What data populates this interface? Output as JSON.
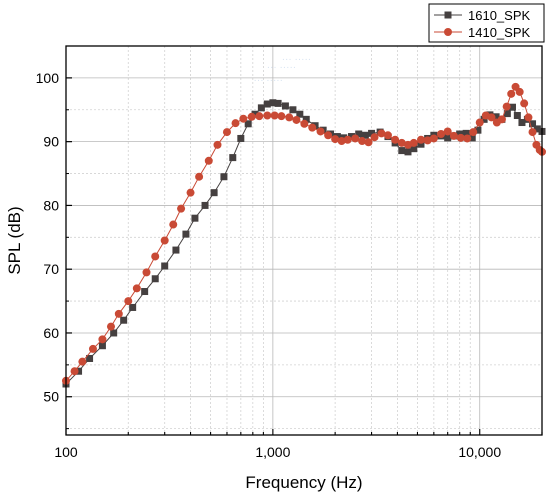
{
  "chart_data": {
    "type": "line",
    "title": "",
    "xlabel": "Frequency (Hz)",
    "ylabel": "SPL (dB)",
    "xscale": "log",
    "xlim": [
      100,
      20000
    ],
    "ylim": [
      44,
      105
    ],
    "grid": true,
    "legend_position": "top-right",
    "x_tick_labels": [
      {
        "value": 100,
        "label": "100"
      },
      {
        "value": 1000,
        "label": "1,000"
      },
      {
        "value": 10000,
        "label": "10,000"
      }
    ],
    "y_tick_labels": [
      {
        "value": 50,
        "label": "50"
      },
      {
        "value": 60,
        "label": "60"
      },
      {
        "value": 70,
        "label": "70"
      },
      {
        "value": 80,
        "label": "80"
      },
      {
        "value": 90,
        "label": "90"
      },
      {
        "value": 100,
        "label": "100"
      }
    ],
    "series": [
      {
        "name": "1610_SPK",
        "color": "#454040",
        "marker": "square",
        "points": [
          [
            100,
            52
          ],
          [
            115,
            54
          ],
          [
            130,
            56
          ],
          [
            150,
            58
          ],
          [
            170,
            60
          ],
          [
            190,
            62
          ],
          [
            210,
            64
          ],
          [
            240,
            66.5
          ],
          [
            270,
            68.5
          ],
          [
            300,
            70.5
          ],
          [
            340,
            73
          ],
          [
            380,
            75.5
          ],
          [
            420,
            78
          ],
          [
            470,
            80
          ],
          [
            520,
            82
          ],
          [
            580,
            84.5
          ],
          [
            640,
            87.5
          ],
          [
            700,
            90.5
          ],
          [
            760,
            92.8
          ],
          [
            820,
            94.3
          ],
          [
            880,
            95.3
          ],
          [
            940,
            95.9
          ],
          [
            1000,
            96.1
          ],
          [
            1060,
            96
          ],
          [
            1150,
            95.6
          ],
          [
            1250,
            95
          ],
          [
            1350,
            94.3
          ],
          [
            1450,
            93.5
          ],
          [
            1600,
            92.5
          ],
          [
            1750,
            91.8
          ],
          [
            1900,
            91.2
          ],
          [
            2050,
            90.8
          ],
          [
            2200,
            90.6
          ],
          [
            2400,
            90.8
          ],
          [
            2600,
            91.2
          ],
          [
            2800,
            91
          ],
          [
            3000,
            91.3
          ],
          [
            3300,
            91.5
          ],
          [
            3600,
            90.8
          ],
          [
            3900,
            89.8
          ],
          [
            4200,
            88.6
          ],
          [
            4500,
            88.4
          ],
          [
            4800,
            88.9
          ],
          [
            5200,
            89.6
          ],
          [
            5600,
            90.5
          ],
          [
            6000,
            91
          ],
          [
            6500,
            90.9
          ],
          [
            7000,
            90.6
          ],
          [
            7500,
            90.9
          ],
          [
            8000,
            91.2
          ],
          [
            8600,
            91.3
          ],
          [
            9200,
            90.6
          ],
          [
            9800,
            91.8
          ],
          [
            10500,
            93.5
          ],
          [
            11200,
            94.2
          ],
          [
            12000,
            93.9
          ],
          [
            12800,
            93.5
          ],
          [
            13600,
            94.4
          ],
          [
            14400,
            95.4
          ],
          [
            15200,
            94.1
          ],
          [
            16000,
            93
          ],
          [
            17000,
            93.5
          ],
          [
            18000,
            92.8
          ],
          [
            19000,
            92
          ],
          [
            20000,
            91.6
          ]
        ]
      },
      {
        "name": "1410_SPK",
        "color": "#c94a35",
        "marker": "circle",
        "points": [
          [
            100,
            52.5
          ],
          [
            110,
            54
          ],
          [
            120,
            55.5
          ],
          [
            135,
            57.5
          ],
          [
            150,
            59
          ],
          [
            165,
            61
          ],
          [
            180,
            63
          ],
          [
            200,
            65
          ],
          [
            220,
            67
          ],
          [
            245,
            69.5
          ],
          [
            270,
            72
          ],
          [
            300,
            74.5
          ],
          [
            330,
            77
          ],
          [
            360,
            79.5
          ],
          [
            400,
            82
          ],
          [
            440,
            84.5
          ],
          [
            490,
            87
          ],
          [
            540,
            89.5
          ],
          [
            600,
            91.5
          ],
          [
            660,
            92.9
          ],
          [
            720,
            93.6
          ],
          [
            790,
            93.9
          ],
          [
            860,
            94
          ],
          [
            940,
            94.1
          ],
          [
            1020,
            94.1
          ],
          [
            1100,
            94
          ],
          [
            1200,
            93.8
          ],
          [
            1300,
            93.4
          ],
          [
            1420,
            92.8
          ],
          [
            1550,
            92.2
          ],
          [
            1700,
            91.6
          ],
          [
            1850,
            91
          ],
          [
            2000,
            90.4
          ],
          [
            2150,
            90.1
          ],
          [
            2300,
            90.3
          ],
          [
            2500,
            90.5
          ],
          [
            2700,
            90.1
          ],
          [
            2900,
            89.9
          ],
          [
            3100,
            90.7
          ],
          [
            3350,
            91.3
          ],
          [
            3600,
            91
          ],
          [
            3900,
            90.3
          ],
          [
            4200,
            89.8
          ],
          [
            4500,
            89.5
          ],
          [
            4800,
            89.8
          ],
          [
            5200,
            90.3
          ],
          [
            5600,
            90.2
          ],
          [
            6000,
            90.5
          ],
          [
            6500,
            91.2
          ],
          [
            7000,
            91.6
          ],
          [
            7500,
            90.9
          ],
          [
            8100,
            90.6
          ],
          [
            8700,
            90.5
          ],
          [
            9300,
            91.5
          ],
          [
            10000,
            93
          ],
          [
            10700,
            94.1
          ],
          [
            11400,
            93.8
          ],
          [
            12100,
            93
          ],
          [
            12800,
            93.5
          ],
          [
            13500,
            95.5
          ],
          [
            14200,
            97.5
          ],
          [
            14900,
            98.6
          ],
          [
            15600,
            97.8
          ],
          [
            16400,
            96
          ],
          [
            17200,
            93.8
          ],
          [
            18000,
            91.5
          ],
          [
            18800,
            89.5
          ],
          [
            19500,
            88.7
          ],
          [
            20000,
            88.4
          ]
        ]
      }
    ]
  },
  "background_text": [
    {
      "x": 1300,
      "y": 102.5,
      "text": "··· ·····"
    },
    {
      "x": 1100,
      "y": 101.2,
      "text": "··· ·····"
    },
    {
      "x": 950,
      "y": 99.2,
      "text": "··· ·····"
    }
  ]
}
